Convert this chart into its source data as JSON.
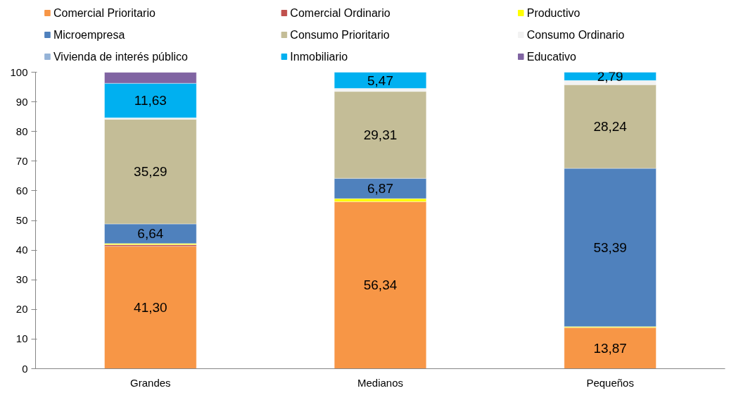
{
  "chart_data": {
    "type": "bar",
    "stacked": true,
    "categories": [
      "Grandes",
      "Medianos",
      "Pequeños"
    ],
    "ylim": [
      0,
      100
    ],
    "yticks": [
      0,
      10,
      20,
      30,
      40,
      50,
      60,
      70,
      80,
      90,
      100
    ],
    "grid": false,
    "legend": "top",
    "series": [
      {
        "name": "Comercial  Prioritario",
        "color": "#f79646",
        "values": [
          41.3,
          56.34,
          13.87
        ],
        "value_labels": [
          "41,30",
          "56,34",
          "13,87"
        ]
      },
      {
        "name": "Comercial  Ordinario",
        "color": "#c0504d",
        "values": [
          0.5,
          0,
          0
        ],
        "value_labels": [
          null,
          null,
          null
        ]
      },
      {
        "name": "Productivo",
        "color": "#ffff00",
        "values": [
          0.4,
          1.0,
          0.3
        ],
        "value_labels": [
          null,
          null,
          null
        ]
      },
      {
        "name": "Microempresa",
        "color": "#4f81bd",
        "values": [
          6.64,
          6.87,
          53.39
        ],
        "value_labels": [
          "6,64",
          "6,87",
          "53,39"
        ]
      },
      {
        "name": "Consumo  Prioritario",
        "color": "#c4bd97",
        "values": [
          35.29,
          29.31,
          28.24
        ],
        "value_labels": [
          "35,29",
          "29,31",
          "28,24"
        ]
      },
      {
        "name": "Consumo  Ordinario",
        "color": "#f2f2f2",
        "values": [
          0.5,
          1.0,
          1.4
        ],
        "value_labels": [
          null,
          null,
          null
        ]
      },
      {
        "name": "Vivienda de interés público",
        "color": "#95b3d7",
        "values": [
          0,
          0,
          0
        ],
        "value_labels": [
          null,
          null,
          null
        ]
      },
      {
        "name": "Inmobiliario",
        "color": "#00b0f0",
        "values": [
          11.63,
          5.47,
          2.79
        ],
        "value_labels": [
          "11,63",
          "5,47",
          "2,79"
        ]
      },
      {
        "name": "Educativo",
        "color": "#8064a2",
        "values": [
          3.7,
          0,
          0
        ],
        "value_labels": [
          null,
          null,
          null
        ]
      }
    ]
  }
}
